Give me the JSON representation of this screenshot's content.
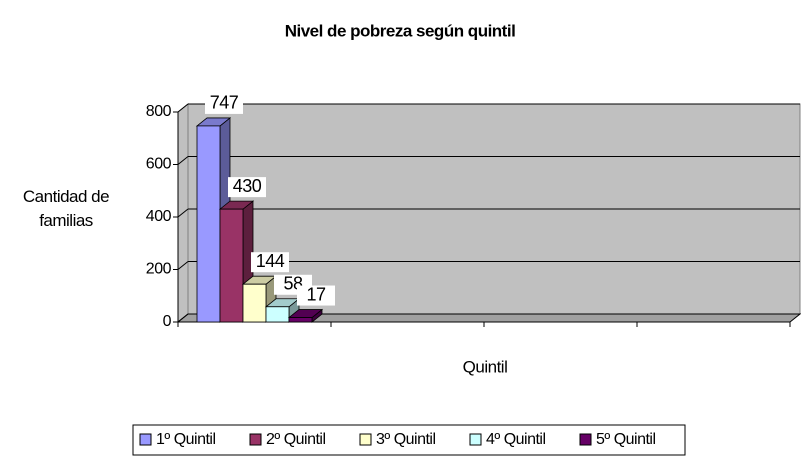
{
  "chart_data": {
    "type": "bar3d",
    "title": "Nivel de pobreza según quintil",
    "x_label": "Quintil",
    "y_label": "Cantidad de familias",
    "categories": [
      null,
      null,
      null,
      null
    ],
    "series": [
      {
        "name": "1º Quintil",
        "color": "#9999ff",
        "values": [
          747,
          null,
          null,
          null
        ]
      },
      {
        "name": "2º Quintil",
        "color": "#993366",
        "values": [
          430,
          null,
          null,
          null
        ]
      },
      {
        "name": "3º Quintil",
        "color": "#ffffcc",
        "values": [
          144,
          null,
          null,
          null
        ]
      },
      {
        "name": "4º Quintil",
        "color": "#ccffff",
        "values": [
          58,
          null,
          null,
          null
        ]
      },
      {
        "name": "5º Quintil",
        "color": "#660066",
        "values": [
          17,
          null,
          null,
          null
        ]
      }
    ],
    "ylim": [
      0,
      800
    ],
    "yticks": [
      0,
      200,
      400,
      600,
      800
    ],
    "grid": true,
    "legend": "bottom"
  }
}
